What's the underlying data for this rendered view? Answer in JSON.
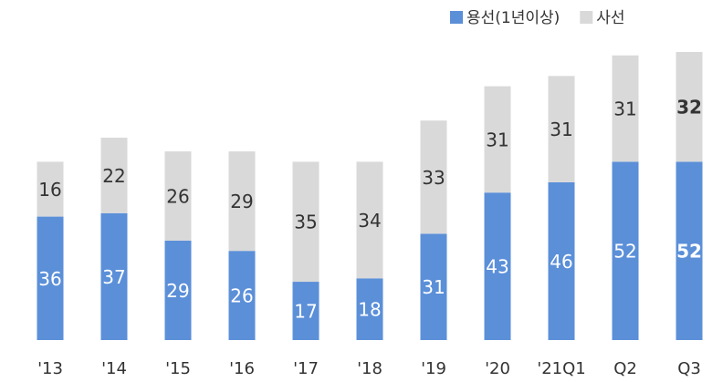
{
  "chart_data": {
    "type": "stacked_bar",
    "categories": [
      "'13",
      "'14",
      "'15",
      "'16",
      "'17",
      "'18",
      "'19",
      "'20",
      "'21Q1",
      "Q2",
      "Q3"
    ],
    "series": [
      {
        "name": "용선(1년이상)",
        "color": "#5b8fd8",
        "values": [
          36,
          37,
          29,
          26,
          17,
          18,
          31,
          43,
          46,
          52,
          52
        ]
      },
      {
        "name": "사선",
        "color": "#d9d9d9",
        "values": [
          16,
          22,
          26,
          29,
          35,
          34,
          33,
          31,
          31,
          31,
          32
        ]
      }
    ],
    "legend": "top-right"
  }
}
